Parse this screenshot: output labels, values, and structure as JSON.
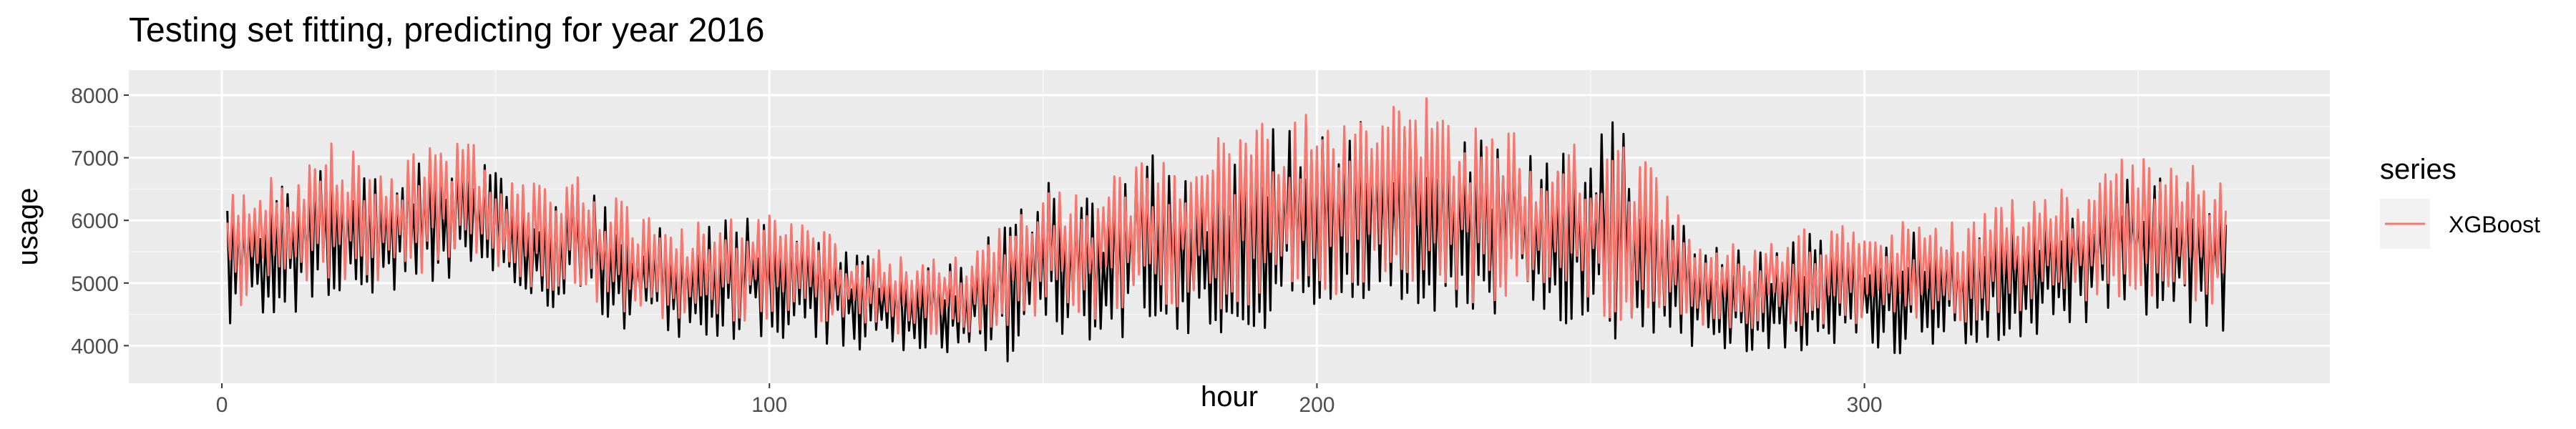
{
  "chart_data": {
    "type": "line",
    "title": "Testing set fitting, predicting for year 2016",
    "xlabel": "hour",
    "ylabel": "usage",
    "xlim": [
      -17,
      385
    ],
    "ylim": [
      3400,
      8400
    ],
    "x_ticks": [
      0,
      100,
      200,
      300
    ],
    "x_tick_labels": [
      "0",
      "100",
      "200",
      "300"
    ],
    "y_ticks": [
      4000,
      5000,
      6000,
      7000,
      8000
    ],
    "y_tick_labels": [
      "4000",
      "5000",
      "6000",
      "7000",
      "8000"
    ],
    "grid": true,
    "legend": {
      "title": "series",
      "placement": "right"
    },
    "x_range": [
      1,
      366
    ],
    "series": [
      {
        "role": "actual",
        "color": "#000000",
        "envelope": {
          "x": [
            1,
            10,
            20,
            30,
            40,
            45,
            55,
            65,
            75,
            85,
            95,
            105,
            115,
            125,
            135,
            145,
            150,
            160,
            170,
            180,
            190,
            200,
            205,
            210,
            220,
            230,
            240,
            250,
            255,
            265,
            270,
            280,
            290,
            300,
            310,
            320,
            330,
            340,
            345,
            350,
            360,
            366
          ],
          "high": [
            6500,
            6700,
            7100,
            6900,
            7200,
            7300,
            6500,
            6700,
            6100,
            5900,
            6200,
            6000,
            5600,
            5400,
            5400,
            6500,
            6800,
            6400,
            7200,
            7000,
            7600,
            7800,
            7500,
            8000,
            7800,
            7500,
            7200,
            7400,
            7900,
            6400,
            5700,
            5600,
            5900,
            5800,
            6000,
            6000,
            6300,
            6500,
            6800,
            7000,
            6800,
            6900
          ],
          "low": [
            4100,
            4300,
            4600,
            4500,
            4800,
            5200,
            4500,
            4400,
            4100,
            3900,
            4000,
            3900,
            3800,
            3700,
            3700,
            3600,
            3900,
            3900,
            4100,
            4000,
            4100,
            4200,
            4300,
            4400,
            4300,
            4200,
            4300,
            4100,
            3800,
            3900,
            3800,
            3800,
            3800,
            3700,
            3800,
            3900,
            4000,
            4200,
            4400,
            4300,
            4000,
            4100
          ]
        }
      },
      {
        "name": "XGBoost",
        "role": "prediction",
        "color": "#F8766D",
        "envelope": {
          "x": [
            1,
            10,
            20,
            30,
            40,
            45,
            55,
            65,
            75,
            85,
            95,
            105,
            115,
            125,
            135,
            145,
            150,
            160,
            170,
            180,
            190,
            200,
            205,
            210,
            220,
            230,
            240,
            250,
            255,
            265,
            270,
            280,
            290,
            300,
            310,
            320,
            330,
            340,
            345,
            350,
            360,
            366
          ],
          "high": [
            6700,
            6800,
            7400,
            7100,
            7400,
            7500,
            6700,
            6800,
            6300,
            6000,
            6300,
            6100,
            5700,
            5500,
            5500,
            6400,
            6600,
            6600,
            7400,
            7400,
            7800,
            8000,
            8300,
            8200,
            8300,
            7800,
            7400,
            7600,
            7700,
            6500,
            5800,
            5800,
            6000,
            6000,
            6100,
            6200,
            6600,
            6800,
            7200,
            7300,
            7000,
            7000
          ],
          "low": [
            4500,
            4600,
            4900,
            4800,
            5100,
            5400,
            4800,
            4700,
            4400,
            4300,
            4300,
            4300,
            4200,
            4100,
            4100,
            4200,
            4300,
            4300,
            4400,
            4400,
            4500,
            4600,
            4600,
            4700,
            4600,
            4500,
            4500,
            4400,
            4200,
            4300,
            4200,
            4200,
            4200,
            4200,
            4200,
            4300,
            4400,
            4500,
            4600,
            4700,
            4500,
            4500
          ]
        }
      }
    ]
  }
}
